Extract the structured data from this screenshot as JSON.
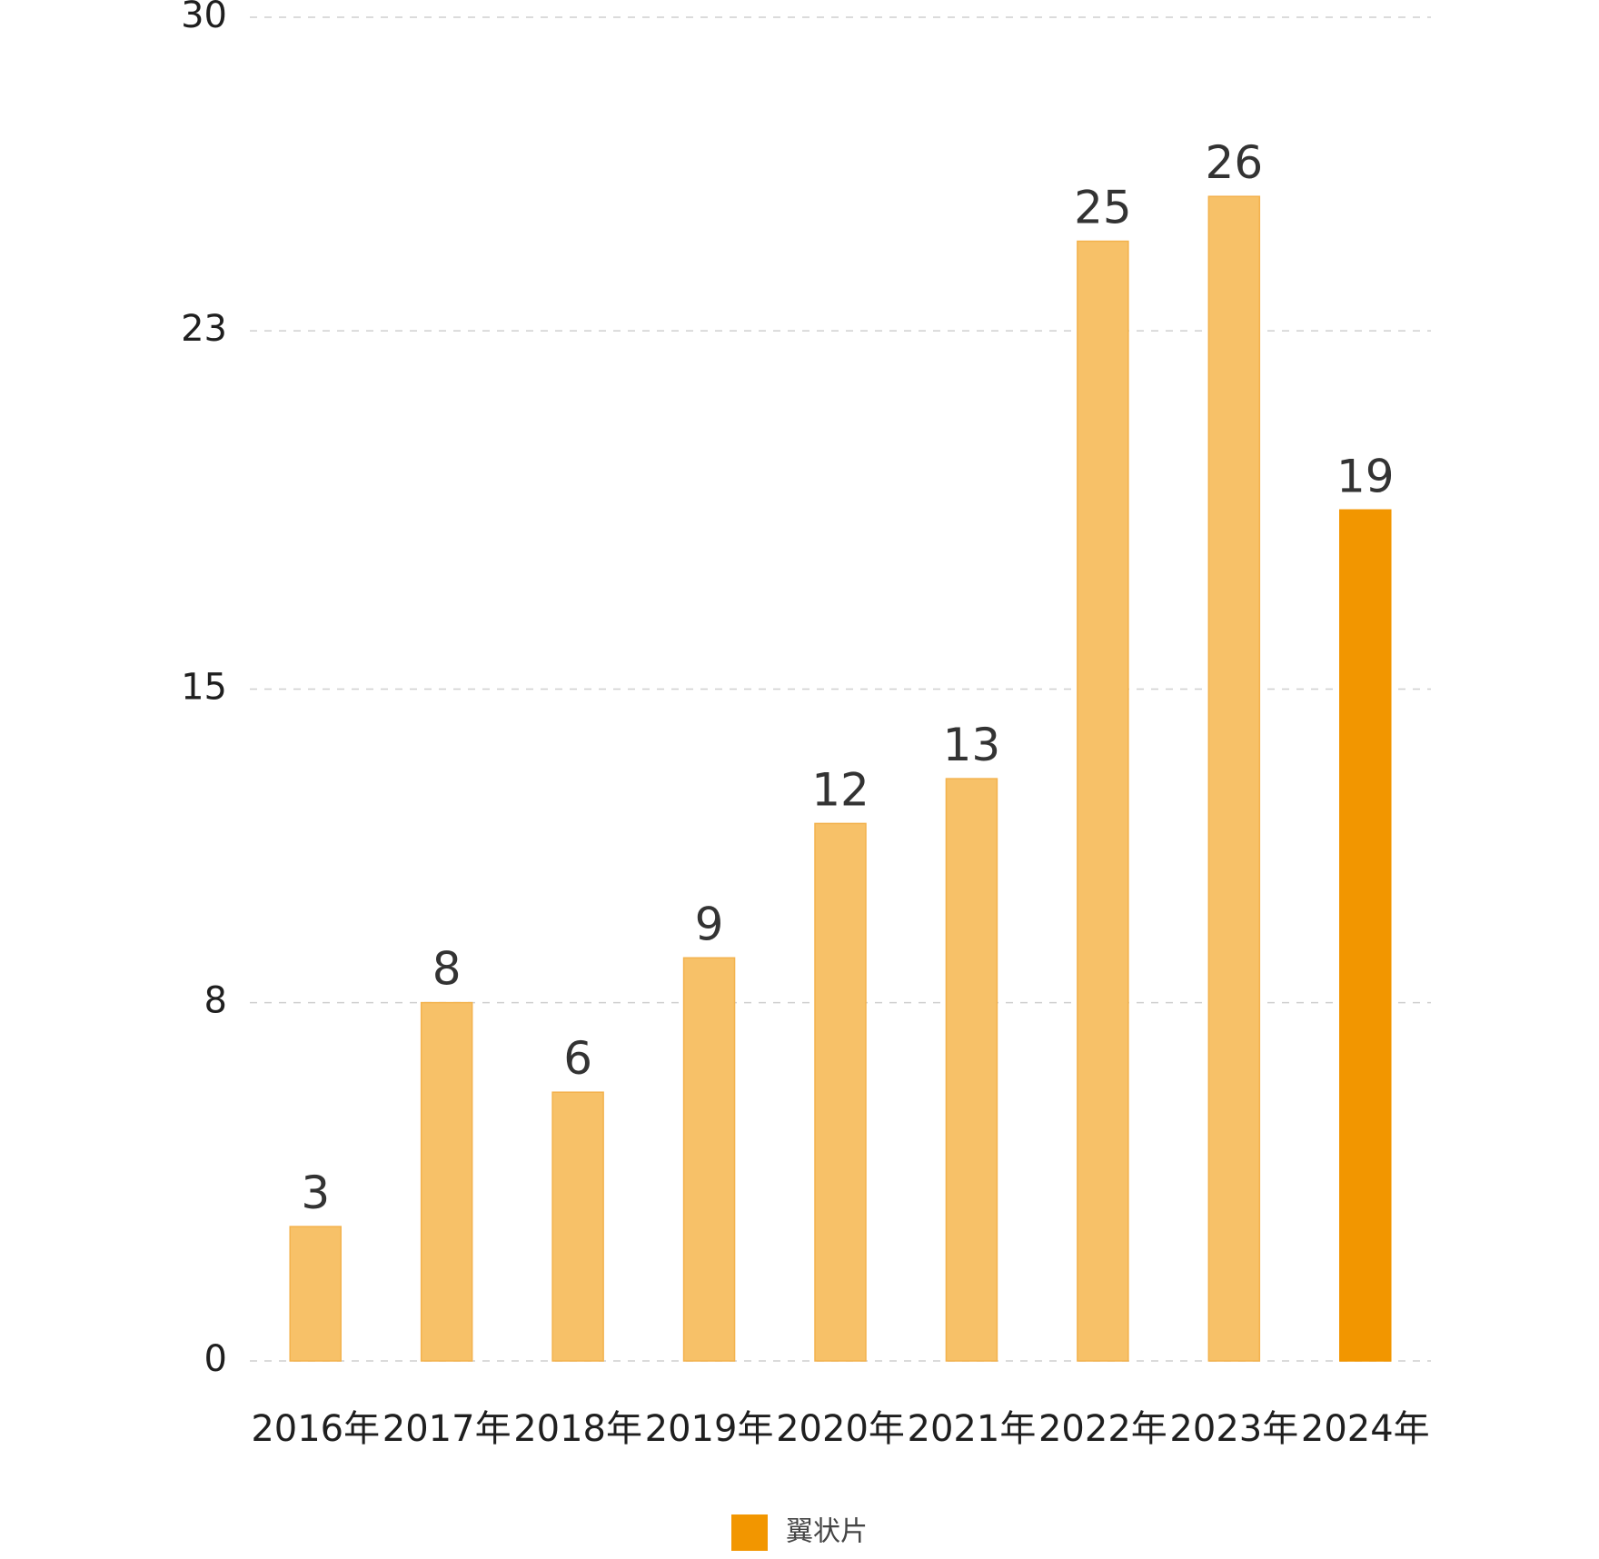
{
  "chart_data": {
    "type": "bar",
    "categories": [
      "2016年",
      "2017年",
      "2018年",
      "2019年",
      "2020年",
      "2021年",
      "2022年",
      "2023年",
      "2024年"
    ],
    "series": [
      {
        "name": "翼状片",
        "values": [
          3,
          8,
          6,
          9,
          12,
          13,
          25,
          26,
          19
        ]
      }
    ],
    "highlight_category": "2024年",
    "yticks": [
      0,
      8,
      15,
      23,
      30
    ],
    "ylim": [
      0,
      30
    ],
    "grid": "horizontal dashed",
    "legend_position": "bottom-center",
    "colors": {
      "bar": "#f7c168",
      "bar_border": "#f3b24d",
      "highlight": "#f29600",
      "legend_swatch": "#f29600",
      "grid": "#cfcfcf",
      "value_text": "#333333",
      "axis_text": "#1f1f1f"
    }
  }
}
